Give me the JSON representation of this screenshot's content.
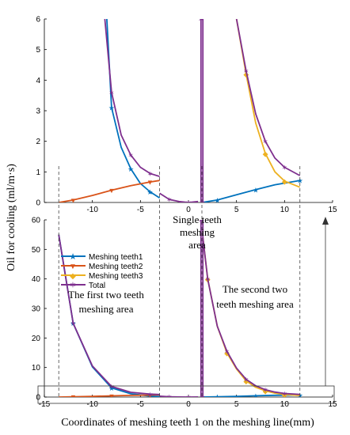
{
  "chart_data": [
    {
      "type": "line",
      "panel": "upper (zoomed)",
      "xlim": [
        -15,
        15
      ],
      "ylim": [
        0,
        6
      ],
      "xticks": [
        -10,
        -5,
        0,
        5,
        10,
        15
      ],
      "yticks": [
        0,
        1,
        2,
        3,
        4,
        5,
        6
      ],
      "series": [
        {
          "name": "Meshing teeth1",
          "x": [
            -8.5,
            -8,
            -7,
            -6,
            -5,
            -4,
            -3
          ],
          "y": [
            6,
            3.1,
            1.8,
            1.1,
            0.62,
            0.35,
            0.15
          ]
        },
        {
          "name": "Meshing teeth1",
          "x": [
            1.4,
            3,
            5,
            7,
            9,
            11.6
          ],
          "y": [
            0,
            0.08,
            0.25,
            0.42,
            0.58,
            0.72
          ]
        },
        {
          "name": "Meshing teeth2",
          "x": [
            -13.5,
            -12,
            -10,
            -8,
            -6,
            -4,
            -3
          ],
          "y": [
            0,
            0.08,
            0.23,
            0.4,
            0.55,
            0.67,
            0.72
          ]
        },
        {
          "name": "Meshing teeth3",
          "x": [
            5,
            6,
            7,
            8,
            9,
            10,
            11.6
          ],
          "y": [
            6,
            4.2,
            2.6,
            1.6,
            1.0,
            0.7,
            0.5
          ]
        },
        {
          "name": "Total",
          "x": [
            -8.7,
            -8,
            -7,
            -6,
            -5,
            -4,
            -3
          ],
          "y": [
            6,
            3.6,
            2.2,
            1.55,
            1.15,
            0.95,
            0.85
          ]
        },
        {
          "name": "Total",
          "x": [
            -3,
            -2,
            -1,
            0,
            1
          ],
          "y": [
            0.3,
            0.1,
            0.03,
            0,
            0.03
          ]
        },
        {
          "name": "Total",
          "x": [
            1.3,
            1.3,
            1.5,
            1.5
          ],
          "y": [
            0,
            6,
            6,
            0
          ]
        },
        {
          "name": "Total",
          "x": [
            5,
            6,
            7,
            8,
            9,
            10,
            11.6
          ],
          "y": [
            6,
            4.3,
            2.9,
            2.0,
            1.45,
            1.15,
            0.88
          ]
        }
      ]
    },
    {
      "type": "line",
      "panel": "lower (full)",
      "xlim": [
        -15,
        15
      ],
      "ylim": [
        0,
        60
      ],
      "xticks": [
        -15,
        -10,
        -5,
        0,
        5,
        10,
        15
      ],
      "yticks": [
        0,
        10,
        20,
        30,
        40,
        50,
        60
      ],
      "series": [
        {
          "name": "Meshing teeth1",
          "x": [
            -13.5,
            -12,
            -10,
            -8,
            -6,
            -4,
            -3
          ],
          "y": [
            55,
            25,
            10.2,
            3.1,
            1.1,
            0.35,
            0.15
          ]
        },
        {
          "name": "Meshing teeth1",
          "x": [
            1.4,
            3,
            5,
            7,
            9,
            11.6
          ],
          "y": [
            0,
            0.1,
            0.25,
            0.42,
            0.58,
            0.72
          ]
        },
        {
          "name": "Meshing teeth2",
          "x": [
            -13.5,
            -12,
            -10,
            -8,
            -6,
            -4,
            -3
          ],
          "y": [
            0,
            0.1,
            0.23,
            0.4,
            0.55,
            0.67,
            0.72
          ]
        },
        {
          "name": "Meshing teeth3",
          "x": [
            1.5,
            2,
            3,
            4,
            5,
            6,
            7,
            8,
            9,
            10,
            11.6
          ],
          "y": [
            54,
            40,
            24,
            15,
            9.5,
            5.5,
            3.3,
            2.1,
            1.3,
            0.9,
            0.5
          ]
        },
        {
          "name": "Total",
          "x": [
            -13.5,
            -12,
            -10,
            -8,
            -6,
            -4,
            -3
          ],
          "y": [
            55,
            25,
            10.5,
            3.6,
            1.6,
            1.0,
            0.85
          ]
        },
        {
          "name": "Total",
          "x": [
            -3,
            -2,
            -1,
            0,
            1
          ],
          "y": [
            0.3,
            0.1,
            0.03,
            0,
            0.03
          ]
        },
        {
          "name": "Total",
          "x": [
            1.3,
            1.3,
            1.5,
            1.5
          ],
          "y": [
            0,
            60,
            60,
            0
          ]
        },
        {
          "name": "Total",
          "x": [
            1.5,
            2,
            3,
            4,
            5,
            6,
            7,
            8,
            9,
            10,
            11.6
          ],
          "y": [
            54,
            40,
            24,
            15.5,
            9.8,
            6,
            3.8,
            2.5,
            1.7,
            1.2,
            0.88
          ]
        }
      ]
    }
  ],
  "colors": {
    "teeth1": "#0072BD",
    "teeth2": "#D95319",
    "teeth3": "#EDB120",
    "total": "#7E2F8E"
  },
  "legend": {
    "items": [
      "Meshing teeth1",
      "Meshing teeth2",
      "Meshing teeth3",
      "Total"
    ]
  },
  "ylabel": "Oil for cooling (ml/m·s)",
  "xlabel": "Coordinates of meshing teeth 1 on the meshing line(mm)",
  "annotations": {
    "single_line1": "Single teeth",
    "single_line2": "meshing",
    "single_line3": "area",
    "first_line1": "The first two teeth",
    "first_line2": "meshing area",
    "second_line1": "The second two",
    "second_line2": "teeth meshing area"
  }
}
